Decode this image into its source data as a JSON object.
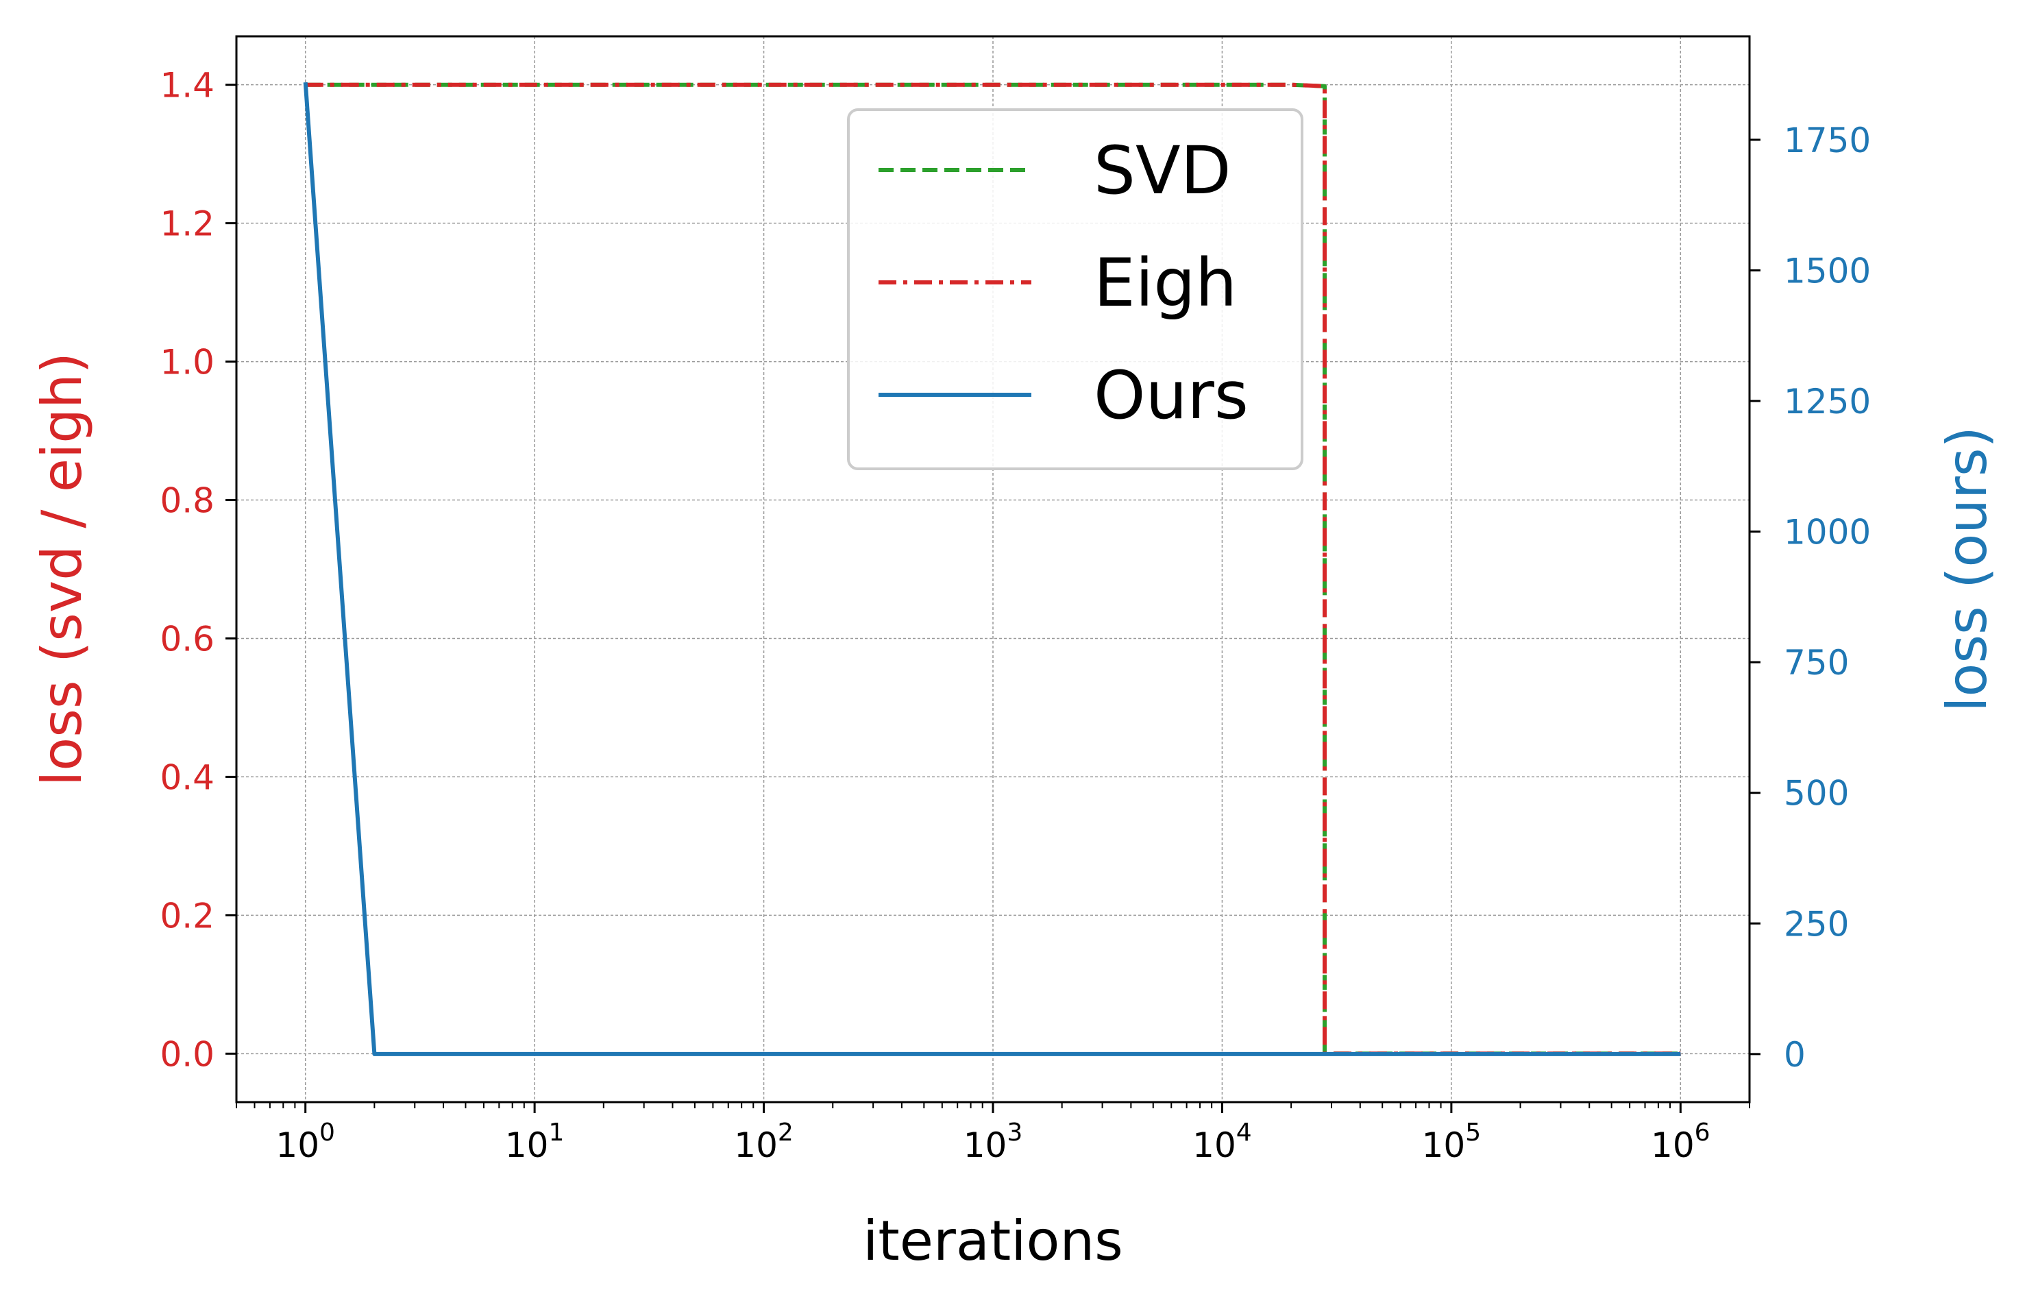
{
  "chart_data": {
    "type": "line",
    "xlabel": "iterations",
    "xscale": "log",
    "xlim": [
      0.5,
      2000000
    ],
    "x_ticks": [
      {
        "base": "10",
        "exp": "0",
        "value": 1
      },
      {
        "base": "10",
        "exp": "1",
        "value": 10
      },
      {
        "base": "10",
        "exp": "2",
        "value": 100
      },
      {
        "base": "10",
        "exp": "3",
        "value": 1000
      },
      {
        "base": "10",
        "exp": "4",
        "value": 10000
      },
      {
        "base": "10",
        "exp": "5",
        "value": 100000
      },
      {
        "base": "10",
        "exp": "6",
        "value": 1000000
      }
    ],
    "y_left": {
      "label": "loss (svd / eigh)",
      "color": "#d62728",
      "ylim": [
        -0.07,
        1.47
      ],
      "ticks": [
        "0.0",
        "0.2",
        "0.4",
        "0.6",
        "0.8",
        "1.0",
        "1.2",
        "1.4"
      ]
    },
    "y_right": {
      "label": "loss (ours)",
      "color": "#1f77b4",
      "ylim": [
        -92,
        1948
      ],
      "ticks": [
        "0",
        "250",
        "500",
        "750",
        "1000",
        "1250",
        "1500",
        "1750"
      ]
    },
    "grid": true,
    "legend_position": "upper center",
    "series": [
      {
        "name": "SVD",
        "axis": "left",
        "color": "#2ca02c",
        "style": "dashed",
        "x": [
          1,
          20000,
          28000,
          28000,
          1000000
        ],
        "y": [
          1.4,
          1.4,
          1.398,
          0.0,
          0.0
        ]
      },
      {
        "name": "Eigh",
        "axis": "left",
        "color": "#d62728",
        "style": "dashdot",
        "x": [
          1,
          20000,
          28000,
          28000,
          1000000
        ],
        "y": [
          1.4,
          1.4,
          1.398,
          0.0,
          0.0
        ]
      },
      {
        "name": "Ours",
        "axis": "right",
        "color": "#1f77b4",
        "style": "solid",
        "x": [
          1,
          2,
          1000000
        ],
        "y": [
          1860,
          0,
          0
        ]
      }
    ]
  }
}
